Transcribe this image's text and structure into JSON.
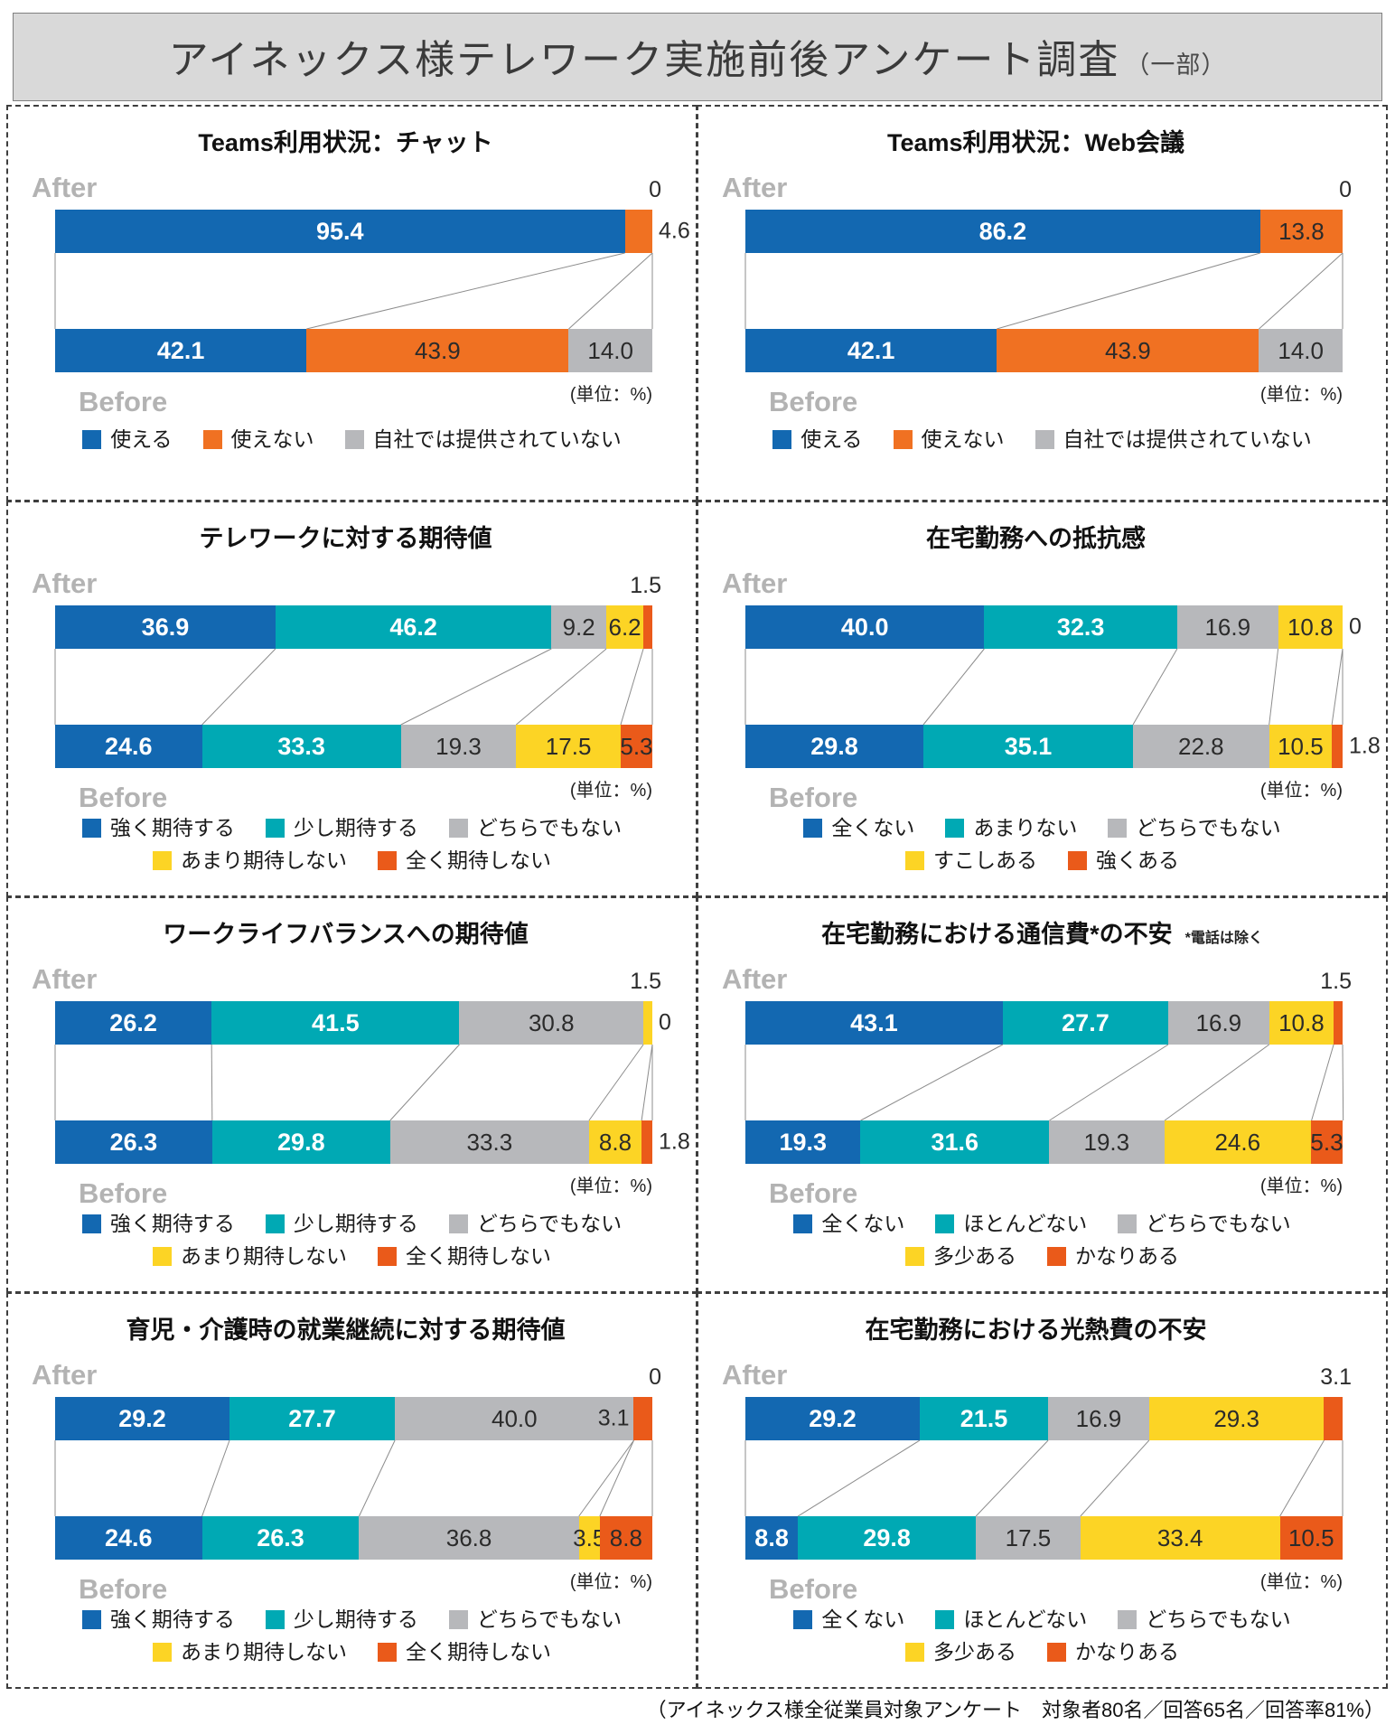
{
  "header": {
    "title": "アイネックス様テレワーク実施前後アンケート調査",
    "subtitle": "（一部）"
  },
  "labels": {
    "after": "After",
    "before": "Before",
    "unit": "(単位：%)"
  },
  "footer": {
    "note": "（アイネックス様全従業員対象アンケート　対象者80名／回答65名／回答率81%）"
  },
  "colors": {
    "blue": {
      "hex": "#1368b1",
      "text": "#ffffff"
    },
    "teal": {
      "hex": "#00a9b4",
      "text": "#ffffff"
    },
    "gray": {
      "hex": "#b7b8bb",
      "text": "#2b2b2b"
    },
    "yellow": {
      "hex": "#fcd425",
      "text": "#2b2b2b"
    },
    "orange": {
      "hex": "#f07122",
      "text": "#2b2b2b"
    },
    "orange_red": {
      "hex": "#ea5a1a",
      "text": "#2b2b2b"
    },
    "connector": "#8c8c8c"
  },
  "chart_data": [
    {
      "type": "bar",
      "title": "Teams利用状況：チャット",
      "title_note": "",
      "palette": [
        "blue",
        "orange",
        "gray"
      ],
      "legend": [
        "使える",
        "使えない",
        "自社では提供されていない"
      ],
      "legend_rows": [
        3
      ],
      "rows": {
        "after": {
          "segments": [
            {
              "value": 95.4,
              "text": "95.4",
              "pos": "in"
            },
            {
              "value": 4.6,
              "text": "4.6",
              "pos": "right"
            },
            {
              "value": 0,
              "text": "0",
              "pos": "above"
            }
          ]
        },
        "before": {
          "segments": [
            {
              "value": 42.1,
              "text": "42.1",
              "pos": "in"
            },
            {
              "value": 43.9,
              "text": "43.9",
              "pos": "in"
            },
            {
              "value": 14.0,
              "text": "14.0",
              "pos": "in"
            }
          ]
        }
      }
    },
    {
      "type": "bar",
      "title": "Teams利用状況：Web会議",
      "title_note": "",
      "palette": [
        "blue",
        "orange",
        "gray"
      ],
      "legend": [
        "使える",
        "使えない",
        "自社では提供されていない"
      ],
      "legend_rows": [
        3
      ],
      "rows": {
        "after": {
          "segments": [
            {
              "value": 86.2,
              "text": "86.2",
              "pos": "in"
            },
            {
              "value": 13.8,
              "text": "13.8",
              "pos": "in"
            },
            {
              "value": 0,
              "text": "0",
              "pos": "above"
            }
          ]
        },
        "before": {
          "segments": [
            {
              "value": 42.1,
              "text": "42.1",
              "pos": "in"
            },
            {
              "value": 43.9,
              "text": "43.9",
              "pos": "in"
            },
            {
              "value": 14.0,
              "text": "14.0",
              "pos": "in"
            }
          ]
        }
      }
    },
    {
      "type": "bar",
      "title": "テレワークに対する期待値",
      "title_note": "",
      "palette": [
        "blue",
        "teal",
        "gray",
        "yellow",
        "orange_red"
      ],
      "legend": [
        "強く期待する",
        "少し期待する",
        "どちらでもない",
        "あまり期待しない",
        "全く期待しない"
      ],
      "legend_rows": [
        3,
        2
      ],
      "rows": {
        "after": {
          "segments": [
            {
              "value": 36.9,
              "text": "36.9",
              "pos": "in"
            },
            {
              "value": 46.2,
              "text": "46.2",
              "pos": "in"
            },
            {
              "value": 9.2,
              "text": "9.2",
              "pos": "in"
            },
            {
              "value": 6.2,
              "text": "6.2",
              "pos": "in"
            },
            {
              "value": 1.5,
              "text": "1.5",
              "pos": "above"
            }
          ]
        },
        "before": {
          "segments": [
            {
              "value": 24.6,
              "text": "24.6",
              "pos": "in"
            },
            {
              "value": 33.3,
              "text": "33.3",
              "pos": "in"
            },
            {
              "value": 19.3,
              "text": "19.3",
              "pos": "in"
            },
            {
              "value": 17.5,
              "text": "17.5",
              "pos": "in"
            },
            {
              "value": 5.3,
              "text": "5.3",
              "pos": "in"
            }
          ]
        }
      }
    },
    {
      "type": "bar",
      "title": "在宅勤務への抵抗感",
      "title_note": "",
      "palette": [
        "blue",
        "teal",
        "gray",
        "yellow",
        "orange_red"
      ],
      "legend": [
        "全くない",
        "あまりない",
        "どちらでもない",
        "すこしある",
        "強くある"
      ],
      "legend_rows": [
        3,
        2
      ],
      "rows": {
        "after": {
          "segments": [
            {
              "value": 40.0,
              "text": "40.0",
              "pos": "in"
            },
            {
              "value": 32.3,
              "text": "32.3",
              "pos": "in"
            },
            {
              "value": 16.9,
              "text": "16.9",
              "pos": "in"
            },
            {
              "value": 10.8,
              "text": "10.8",
              "pos": "in"
            },
            {
              "value": 0,
              "text": "0",
              "pos": "right"
            }
          ]
        },
        "before": {
          "segments": [
            {
              "value": 29.8,
              "text": "29.8",
              "pos": "in"
            },
            {
              "value": 35.1,
              "text": "35.1",
              "pos": "in"
            },
            {
              "value": 22.8,
              "text": "22.8",
              "pos": "in"
            },
            {
              "value": 10.5,
              "text": "10.5",
              "pos": "in"
            },
            {
              "value": 1.8,
              "text": "1.8",
              "pos": "right"
            }
          ]
        }
      }
    },
    {
      "type": "bar",
      "title": "ワークライフバランスへの期待値",
      "title_note": "",
      "palette": [
        "blue",
        "teal",
        "gray",
        "yellow",
        "orange_red"
      ],
      "legend": [
        "強く期待する",
        "少し期待する",
        "どちらでもない",
        "あまり期待しない",
        "全く期待しない"
      ],
      "legend_rows": [
        3,
        2
      ],
      "rows": {
        "after": {
          "segments": [
            {
              "value": 26.2,
              "text": "26.2",
              "pos": "in"
            },
            {
              "value": 41.5,
              "text": "41.5",
              "pos": "in"
            },
            {
              "value": 30.8,
              "text": "30.8",
              "pos": "in"
            },
            {
              "value": 1.5,
              "text": "1.5",
              "pos": "above"
            },
            {
              "value": 0,
              "text": "0",
              "pos": "right"
            }
          ]
        },
        "before": {
          "segments": [
            {
              "value": 26.3,
              "text": "26.3",
              "pos": "in"
            },
            {
              "value": 29.8,
              "text": "29.8",
              "pos": "in"
            },
            {
              "value": 33.3,
              "text": "33.3",
              "pos": "in"
            },
            {
              "value": 8.8,
              "text": "8.8",
              "pos": "in"
            },
            {
              "value": 1.8,
              "text": "1.8",
              "pos": "right"
            }
          ]
        }
      }
    },
    {
      "type": "bar",
      "title": "在宅勤務における通信費*の不安",
      "title_note": "*電話は除く",
      "palette": [
        "blue",
        "teal",
        "gray",
        "yellow",
        "orange_red"
      ],
      "legend": [
        "全くない",
        "ほとんどない",
        "どちらでもない",
        "多少ある",
        "かなりある"
      ],
      "legend_rows": [
        3,
        2
      ],
      "rows": {
        "after": {
          "segments": [
            {
              "value": 43.1,
              "text": "43.1",
              "pos": "in"
            },
            {
              "value": 27.7,
              "text": "27.7",
              "pos": "in"
            },
            {
              "value": 16.9,
              "text": "16.9",
              "pos": "in"
            },
            {
              "value": 10.8,
              "text": "10.8",
              "pos": "in"
            },
            {
              "value": 1.5,
              "text": "1.5",
              "pos": "above"
            }
          ]
        },
        "before": {
          "segments": [
            {
              "value": 19.3,
              "text": "19.3",
              "pos": "in"
            },
            {
              "value": 31.6,
              "text": "31.6",
              "pos": "in"
            },
            {
              "value": 19.3,
              "text": "19.3",
              "pos": "in"
            },
            {
              "value": 24.6,
              "text": "24.6",
              "pos": "in"
            },
            {
              "value": 5.3,
              "text": "5.3",
              "pos": "in"
            }
          ]
        }
      }
    },
    {
      "type": "bar",
      "title": "育児・介護時の就業継続に対する期待値",
      "title_note": "",
      "palette": [
        "blue",
        "teal",
        "gray",
        "yellow",
        "orange_red"
      ],
      "legend": [
        "強く期待する",
        "少し期待する",
        "どちらでもない",
        "あまり期待しない",
        "全く期待しない"
      ],
      "legend_rows": [
        3,
        2
      ],
      "rows": {
        "after": {
          "segments": [
            {
              "value": 29.2,
              "text": "29.2",
              "pos": "in"
            },
            {
              "value": 27.7,
              "text": "27.7",
              "pos": "in"
            },
            {
              "value": 40.0,
              "text": "40.0",
              "pos": "in"
            },
            {
              "value": 0,
              "text": "0",
              "pos": "above"
            },
            {
              "value": 3.1,
              "text": "3.1",
              "pos": "left"
            }
          ]
        },
        "before": {
          "segments": [
            {
              "value": 24.6,
              "text": "24.6",
              "pos": "in"
            },
            {
              "value": 26.3,
              "text": "26.3",
              "pos": "in"
            },
            {
              "value": 36.8,
              "text": "36.8",
              "pos": "in"
            },
            {
              "value": 3.5,
              "text": "3.5",
              "pos": "in"
            },
            {
              "value": 8.8,
              "text": "8.8",
              "pos": "in"
            }
          ]
        }
      }
    },
    {
      "type": "bar",
      "title": "在宅勤務における光熱費の不安",
      "title_note": "",
      "palette": [
        "blue",
        "teal",
        "gray",
        "yellow",
        "orange_red"
      ],
      "legend": [
        "全くない",
        "ほとんどない",
        "どちらでもない",
        "多少ある",
        "かなりある"
      ],
      "legend_rows": [
        3,
        2
      ],
      "rows": {
        "after": {
          "segments": [
            {
              "value": 29.2,
              "text": "29.2",
              "pos": "in"
            },
            {
              "value": 21.5,
              "text": "21.5",
              "pos": "in"
            },
            {
              "value": 16.9,
              "text": "16.9",
              "pos": "in"
            },
            {
              "value": 29.3,
              "text": "29.3",
              "pos": "in"
            },
            {
              "value": 3.1,
              "text": "3.1",
              "pos": "above"
            }
          ]
        },
        "before": {
          "segments": [
            {
              "value": 8.8,
              "text": "8.8",
              "pos": "in"
            },
            {
              "value": 29.8,
              "text": "29.8",
              "pos": "in"
            },
            {
              "value": 17.5,
              "text": "17.5",
              "pos": "in"
            },
            {
              "value": 33.4,
              "text": "33.4",
              "pos": "in"
            },
            {
              "value": 10.5,
              "text": "10.5",
              "pos": "in"
            }
          ]
        }
      }
    }
  ]
}
